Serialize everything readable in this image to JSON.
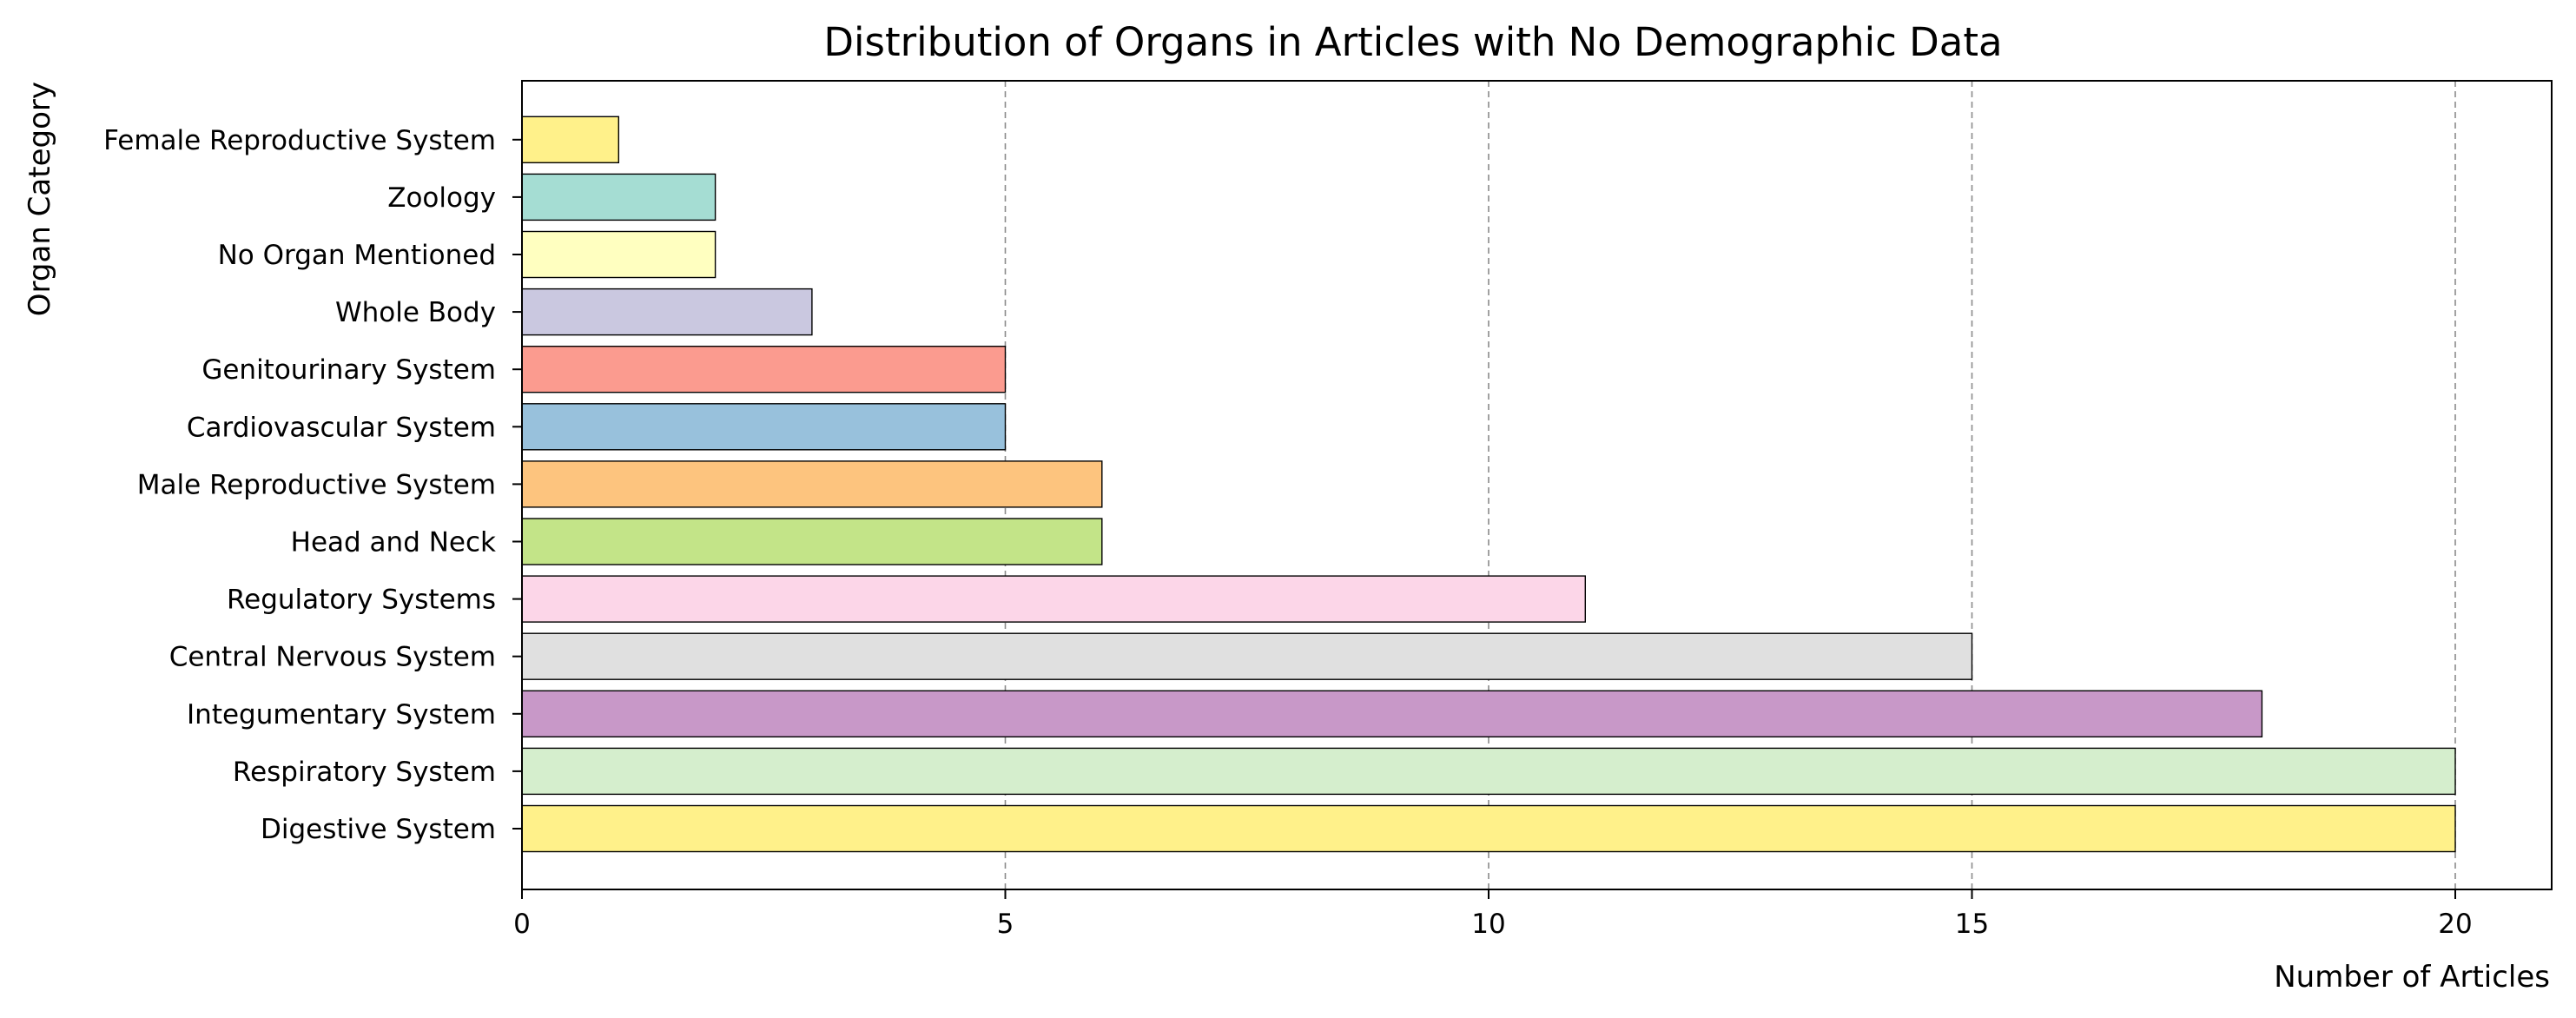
{
  "chart_data": {
    "type": "bar",
    "orientation": "horizontal",
    "title": "Distribution of Organs in Articles with No Demographic Data",
    "xlabel": "Number of Articles",
    "ylabel": "Organ Category",
    "xlim": [
      0,
      21
    ],
    "xticks": [
      0,
      5,
      10,
      15,
      20
    ],
    "xtick_labels": [
      "0",
      "5",
      "10",
      "15",
      "20"
    ],
    "grid": "x-axis dashed vertical lines",
    "categories": [
      "Digestive System",
      "Respiratory System",
      "Integumentary System",
      "Central Nervous System",
      "Regulatory Systems",
      "Head and Neck",
      "Male Reproductive System",
      "Cardiovascular System",
      "Genitourinary System",
      "Whole Body",
      "No Organ Mentioned",
      "Zoology",
      "Female Reproductive System"
    ],
    "values": [
      20,
      20,
      18,
      15,
      11,
      6,
      6,
      5,
      5,
      3,
      2,
      2,
      1
    ],
    "colors": [
      "#fff18a",
      "#d5eecd",
      "#c898c8",
      "#e0e0e0",
      "#fcd6e8",
      "#c3e488",
      "#fdc47e",
      "#98c1dc",
      "#fb9b8f",
      "#cac8e0",
      "#ffffc0",
      "#a5ddd3",
      "#fff18a"
    ]
  }
}
